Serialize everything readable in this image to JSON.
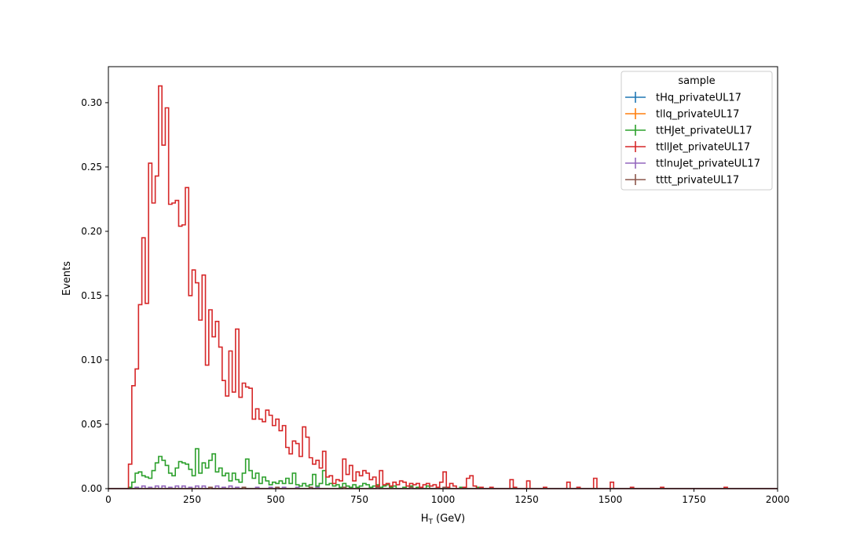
{
  "chart_data": {
    "type": "histogram",
    "xlabel_main": "H",
    "xlabel_sub": "T",
    "xlabel_unit": " (GeV)",
    "ylabel": "Events",
    "xlim": [
      0,
      2000
    ],
    "ylim": [
      0,
      0.328
    ],
    "xticks": [
      "0",
      "250",
      "500",
      "750",
      "1000",
      "1250",
      "1500",
      "1750",
      "2000"
    ],
    "yticks": [
      "0.00",
      "0.05",
      "0.10",
      "0.15",
      "0.20",
      "0.25",
      "0.30"
    ],
    "legend": {
      "title": "sample",
      "placement": "upper right",
      "entries": [
        "tHq_privateUL17",
        "tllq_privateUL17",
        "ttHJet_privateUL17",
        "ttllJet_privateUL17",
        "ttlnuJet_privateUL17",
        "tttt_privateUL17"
      ]
    },
    "bin_width": 10,
    "series": [
      {
        "name": "tHq_privateUL17",
        "color": "#1f77b4",
        "bins": []
      },
      {
        "name": "tllq_privateUL17",
        "color": "#ff7f0e",
        "bins": []
      },
      {
        "name": "ttHJet_privateUL17",
        "color": "#2ca02c",
        "bins": [
          [
            60,
            0.001
          ],
          [
            70,
            0.005
          ],
          [
            80,
            0.012
          ],
          [
            90,
            0.013
          ],
          [
            100,
            0.01
          ],
          [
            110,
            0.009
          ],
          [
            120,
            0.008
          ],
          [
            130,
            0.014
          ],
          [
            140,
            0.02
          ],
          [
            150,
            0.025
          ],
          [
            160,
            0.022
          ],
          [
            170,
            0.018
          ],
          [
            180,
            0.012
          ],
          [
            190,
            0.01
          ],
          [
            200,
            0.016
          ],
          [
            210,
            0.021
          ],
          [
            220,
            0.02
          ],
          [
            230,
            0.019
          ],
          [
            240,
            0.015
          ],
          [
            250,
            0.01
          ],
          [
            260,
            0.031
          ],
          [
            270,
            0.012
          ],
          [
            280,
            0.02
          ],
          [
            290,
            0.016
          ],
          [
            300,
            0.022
          ],
          [
            310,
            0.027
          ],
          [
            320,
            0.013
          ],
          [
            330,
            0.016
          ],
          [
            340,
            0.01
          ],
          [
            350,
            0.012
          ],
          [
            360,
            0.006
          ],
          [
            370,
            0.012
          ],
          [
            380,
            0.007
          ],
          [
            390,
            0.005
          ],
          [
            400,
            0.012
          ],
          [
            410,
            0.023
          ],
          [
            420,
            0.014
          ],
          [
            430,
            0.008
          ],
          [
            440,
            0.012
          ],
          [
            450,
            0.004
          ],
          [
            460,
            0.009
          ],
          [
            470,
            0.006
          ],
          [
            480,
            0.003
          ],
          [
            490,
            0.005
          ],
          [
            500,
            0.004
          ],
          [
            510,
            0.006
          ],
          [
            520,
            0.004
          ],
          [
            530,
            0.008
          ],
          [
            540,
            0.004
          ],
          [
            550,
            0.012
          ],
          [
            560,
            0.003
          ],
          [
            570,
            0.002
          ],
          [
            580,
            0.004
          ],
          [
            590,
            0.002
          ],
          [
            600,
            0.003
          ],
          [
            610,
            0.011
          ],
          [
            620,
            0.002
          ],
          [
            630,
            0.004
          ],
          [
            640,
            0.014
          ],
          [
            650,
            0.003
          ],
          [
            660,
            0.004
          ],
          [
            670,
            0.002
          ],
          [
            680,
            0.003
          ],
          [
            690,
            0.001
          ],
          [
            700,
            0.004
          ],
          [
            710,
            0.002
          ],
          [
            720,
            0.001
          ],
          [
            730,
            0.003
          ],
          [
            740,
            0.001
          ],
          [
            750,
            0.002
          ],
          [
            760,
            0.004
          ],
          [
            770,
            0.003
          ],
          [
            780,
            0.001
          ],
          [
            790,
            0.002
          ],
          [
            800,
            0.003
          ],
          [
            810,
            0.001
          ],
          [
            820,
            0.002
          ],
          [
            830,
            0.003
          ],
          [
            840,
            0.001
          ],
          [
            850,
            0.002
          ],
          [
            880,
            0.001
          ],
          [
            900,
            0.002
          ],
          [
            920,
            0.001
          ],
          [
            950,
            0.002
          ],
          [
            980,
            0.001
          ],
          [
            1010,
            0.001
          ],
          [
            1050,
            0.001
          ],
          [
            1100,
            0.001
          ]
        ]
      },
      {
        "name": "ttllJet_privateUL17",
        "color": "#d62728",
        "bins": [
          [
            60,
            0.019
          ],
          [
            70,
            0.08
          ],
          [
            80,
            0.093
          ],
          [
            90,
            0.143
          ],
          [
            100,
            0.195
          ],
          [
            110,
            0.144
          ],
          [
            120,
            0.253
          ],
          [
            130,
            0.222
          ],
          [
            140,
            0.243
          ],
          [
            150,
            0.313
          ],
          [
            160,
            0.267
          ],
          [
            170,
            0.296
          ],
          [
            180,
            0.221
          ],
          [
            190,
            0.222
          ],
          [
            200,
            0.224
          ],
          [
            210,
            0.204
          ],
          [
            220,
            0.205
          ],
          [
            230,
            0.234
          ],
          [
            240,
            0.15
          ],
          [
            250,
            0.17
          ],
          [
            260,
            0.16
          ],
          [
            270,
            0.131
          ],
          [
            280,
            0.166
          ],
          [
            290,
            0.096
          ],
          [
            300,
            0.139
          ],
          [
            310,
            0.118
          ],
          [
            320,
            0.13
          ],
          [
            330,
            0.11
          ],
          [
            340,
            0.084
          ],
          [
            350,
            0.072
          ],
          [
            360,
            0.107
          ],
          [
            370,
            0.075
          ],
          [
            380,
            0.124
          ],
          [
            390,
            0.071
          ],
          [
            400,
            0.082
          ],
          [
            410,
            0.079
          ],
          [
            420,
            0.078
          ],
          [
            430,
            0.054
          ],
          [
            440,
            0.062
          ],
          [
            450,
            0.054
          ],
          [
            460,
            0.052
          ],
          [
            470,
            0.061
          ],
          [
            480,
            0.057
          ],
          [
            490,
            0.049
          ],
          [
            500,
            0.054
          ],
          [
            510,
            0.045
          ],
          [
            520,
            0.049
          ],
          [
            530,
            0.032
          ],
          [
            540,
            0.027
          ],
          [
            550,
            0.037
          ],
          [
            560,
            0.035
          ],
          [
            570,
            0.025
          ],
          [
            580,
            0.048
          ],
          [
            590,
            0.04
          ],
          [
            600,
            0.024
          ],
          [
            610,
            0.019
          ],
          [
            620,
            0.022
          ],
          [
            630,
            0.016
          ],
          [
            640,
            0.029
          ],
          [
            650,
            0.009
          ],
          [
            660,
            0.01
          ],
          [
            670,
            0.004
          ],
          [
            680,
            0.007
          ],
          [
            690,
            0.006
          ],
          [
            700,
            0.023
          ],
          [
            710,
            0.011
          ],
          [
            720,
            0.018
          ],
          [
            730,
            0.006
          ],
          [
            740,
            0.013
          ],
          [
            750,
            0.01
          ],
          [
            760,
            0.014
          ],
          [
            770,
            0.012
          ],
          [
            780,
            0.007
          ],
          [
            790,
            0.009
          ],
          [
            800,
            0.002
          ],
          [
            810,
            0.014
          ],
          [
            820,
            0.003
          ],
          [
            830,
            0.004
          ],
          [
            840,
            0.002
          ],
          [
            850,
            0.005
          ],
          [
            860,
            0.003
          ],
          [
            870,
            0.006
          ],
          [
            880,
            0.005
          ],
          [
            890,
            0.002
          ],
          [
            900,
            0.004
          ],
          [
            910,
            0.003
          ],
          [
            920,
            0.004
          ],
          [
            930,
            0.001
          ],
          [
            940,
            0.003
          ],
          [
            950,
            0.004
          ],
          [
            960,
            0.002
          ],
          [
            970,
            0.003
          ],
          [
            980,
            0.001
          ],
          [
            990,
            0.005
          ],
          [
            1000,
            0.013
          ],
          [
            1010,
            0.001
          ],
          [
            1020,
            0.004
          ],
          [
            1030,
            0.002
          ],
          [
            1060,
            0.001
          ],
          [
            1070,
            0.008
          ],
          [
            1080,
            0.01
          ],
          [
            1090,
            0.002
          ],
          [
            1110,
            0.001
          ],
          [
            1140,
            0.001
          ],
          [
            1200,
            0.007
          ],
          [
            1210,
            0.001
          ],
          [
            1250,
            0.006
          ],
          [
            1300,
            0.001
          ],
          [
            1370,
            0.005
          ],
          [
            1400,
            0.001
          ],
          [
            1450,
            0.008
          ],
          [
            1500,
            0.005
          ],
          [
            1560,
            0.001
          ],
          [
            1650,
            0.001
          ],
          [
            1840,
            0.001
          ]
        ]
      },
      {
        "name": "ttlnuJet_privateUL17",
        "color": "#9467bd",
        "bins": [
          [
            80,
            0.001
          ],
          [
            100,
            0.002
          ],
          [
            120,
            0.001
          ],
          [
            140,
            0.002
          ],
          [
            160,
            0.002
          ],
          [
            180,
            0.001
          ],
          [
            200,
            0.002
          ],
          [
            220,
            0.002
          ],
          [
            240,
            0.001
          ],
          [
            260,
            0.002
          ],
          [
            280,
            0.002
          ],
          [
            300,
            0.001
          ],
          [
            320,
            0.002
          ],
          [
            340,
            0.001
          ],
          [
            360,
            0.002
          ],
          [
            380,
            0.001
          ],
          [
            400,
            0.001
          ],
          [
            440,
            0.001
          ],
          [
            480,
            0.001
          ],
          [
            520,
            0.001
          ],
          [
            560,
            0.001
          ],
          [
            620,
            0.001
          ],
          [
            700,
            0.001
          ]
        ]
      },
      {
        "name": "tttt_privateUL17",
        "color": "#8c564b",
        "bins": [
          [
            300,
            0.001
          ],
          [
            400,
            0.001
          ],
          [
            500,
            0.001
          ],
          [
            600,
            0.001
          ],
          [
            700,
            0.001
          ],
          [
            800,
            0.001
          ],
          [
            900,
            0.001
          ],
          [
            1000,
            0.001
          ]
        ]
      }
    ]
  }
}
